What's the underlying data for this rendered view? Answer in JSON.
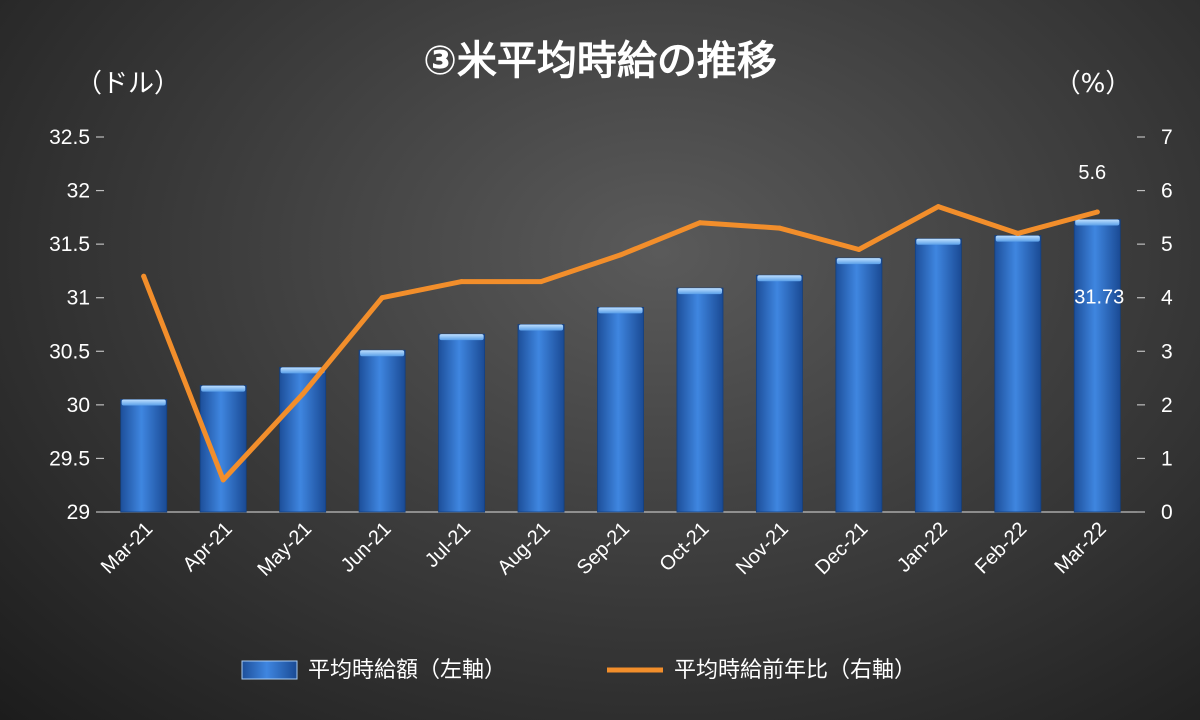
{
  "chart_data": {
    "type": "bar",
    "title": "③米平均時給の推移",
    "left_axis_unit": "（ドル）",
    "right_axis_unit": "（%）",
    "categories": [
      "Mar-21",
      "Apr-21",
      "May-21",
      "Jun-21",
      "Jul-21",
      "Aug-21",
      "Sep-21",
      "Oct-21",
      "Nov-21",
      "Dec-21",
      "Jan-22",
      "Feb-22",
      "Mar-22"
    ],
    "y_left": {
      "range": [
        29,
        32.5
      ],
      "ticks": [
        "29",
        "29.5",
        "30",
        "30.5",
        "31",
        "31.5",
        "32",
        "32.5"
      ]
    },
    "y_right": {
      "range": [
        0,
        7
      ],
      "ticks": [
        "0",
        "1",
        "2",
        "3",
        "4",
        "5",
        "6",
        "7"
      ]
    },
    "series": [
      {
        "name": "平均時給額（左軸）",
        "type": "bar",
        "axis": "left",
        "color": "#2f6fc9",
        "values": [
          30.05,
          30.18,
          30.35,
          30.51,
          30.66,
          30.75,
          30.91,
          31.09,
          31.21,
          31.37,
          31.55,
          31.58,
          31.73
        ]
      },
      {
        "name": "平均時給前年比（右軸）",
        "type": "line",
        "axis": "right",
        "color": "#f28e2b",
        "values": [
          4.4,
          0.6,
          2.2,
          4.0,
          4.3,
          4.3,
          4.8,
          5.4,
          5.3,
          4.9,
          5.7,
          5.2,
          5.6
        ]
      }
    ],
    "data_labels": {
      "bar_last": "31.73",
      "line_last": "5.6"
    },
    "legend_position": "bottom",
    "grid": false
  }
}
